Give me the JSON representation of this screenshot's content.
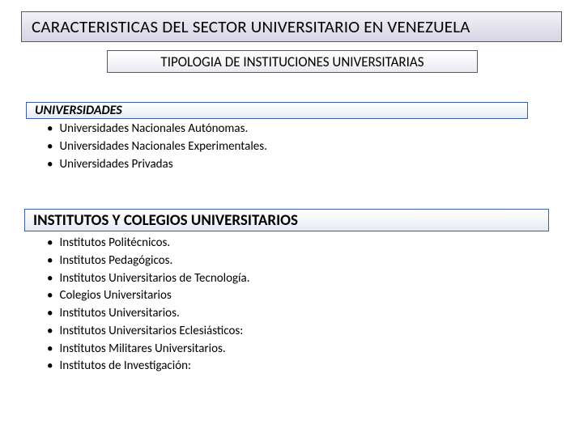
{
  "title": "CARACTERISTICAS DEL SECTOR UNIVERSITARIO EN VENEZUELA",
  "subtitle": "TIPOLOGIA DE INSTITUCIONES UNIVERSITARIAS",
  "colors": {
    "title_border": "#595959",
    "title_bg_top": "#f2f0f6",
    "title_bg_bottom": "#d8d4e5",
    "subtitle_border": "#595959",
    "section_border": "#3b5ea8",
    "section_bg_top": "#ffffff",
    "section_bg_bottom": "#e4ebf6",
    "text": "#000000",
    "background": "#ffffff"
  },
  "typography": {
    "title_fontsize": 21,
    "subtitle_fontsize": 17,
    "section1_fontsize": 16,
    "section2_fontsize": 19,
    "bullet_fontsize": 15,
    "font_family": "Calibri"
  },
  "sections": [
    {
      "header": "UNIVERSIDADES",
      "header_style": "italic-bold",
      "items": [
        "Universidades Nacionales Autónomas.",
        "Universidades Nacionales Experimentales.",
        "Universidades Privadas"
      ]
    },
    {
      "header": "INSTITUTOS Y COLEGIOS UNIVERSITARIOS",
      "header_style": "bold",
      "items": [
        "Institutos Politécnicos.",
        "Institutos Pedagógicos.",
        "Institutos Universitarios de Tecnología.",
        "Colegios Universitarios",
        "Institutos Universitarios.",
        "Institutos Universitarios Eclesiásticos:",
        "Institutos Militares Universitarios.",
        "Institutos de Investigación:"
      ]
    }
  ]
}
